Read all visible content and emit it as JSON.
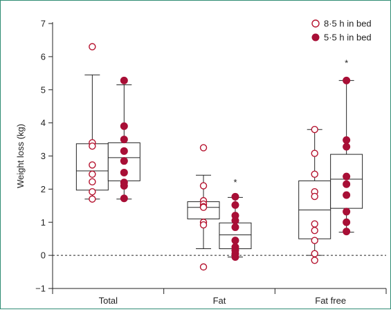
{
  "chart_data": {
    "type": "box",
    "title": "",
    "xlabel": "",
    "ylabel": "Weight loss (kg)",
    "ylim": [
      -1,
      7
    ],
    "yticks": [
      "−1",
      "0",
      "1",
      "2",
      "3",
      "4",
      "5",
      "6",
      "7"
    ],
    "reference_line": {
      "y": 0,
      "style": "dashed"
    },
    "grid": false,
    "legend_position": "top-right",
    "colors": {
      "open": "#b5122e",
      "filled": "#a80f36"
    },
    "categories": [
      "Total",
      "Fat",
      "Fat free"
    ],
    "series": [
      {
        "name": "8·5 h in bed",
        "marker": "open",
        "boxes": [
          {
            "whisker_low": 1.7,
            "q1": 1.97,
            "median": 2.55,
            "q3": 3.37,
            "whisker_high": 5.45,
            "points": [
              6.3,
              3.4,
              3.3,
              2.73,
              2.45,
              2.22,
              1.92,
              1.7
            ]
          },
          {
            "whisker_low": 0.2,
            "q1": 1.1,
            "median": 1.45,
            "q3": 1.62,
            "whisker_high": 2.42,
            "points": [
              3.25,
              2.1,
              1.65,
              1.55,
              1.47,
              1.45,
              1.0,
              0.92,
              -0.35
            ]
          },
          {
            "whisker_low": 0.0,
            "q1": 0.5,
            "median": 1.37,
            "q3": 2.25,
            "whisker_high": 3.8,
            "points": [
              3.8,
              3.08,
              2.45,
              1.92,
              1.78,
              0.95,
              0.75,
              0.45,
              0.05,
              -0.15
            ]
          }
        ]
      },
      {
        "name": "5·5 h in bed",
        "marker": "filled",
        "boxes": [
          {
            "whisker_low": 1.7,
            "q1": 2.25,
            "median": 2.95,
            "q3": 3.4,
            "whisker_high": 5.15,
            "points": [
              5.28,
              3.9,
              3.5,
              3.15,
              2.85,
              2.5,
              2.2,
              2.1,
              1.72
            ]
          },
          {
            "whisker_low": -0.05,
            "q1": 0.2,
            "median": 0.62,
            "q3": 0.98,
            "whisker_high": 1.75,
            "points": [
              1.77,
              1.52,
              1.2,
              1.05,
              0.85,
              0.45,
              0.25,
              0.15,
              0.05,
              -0.05
            ]
          },
          {
            "whisker_low": 0.7,
            "q1": 1.42,
            "median": 2.3,
            "q3": 3.05,
            "whisker_high": 5.28,
            "points": [
              5.28,
              3.48,
              3.28,
              2.38,
              2.15,
              1.82,
              1.32,
              1.0,
              0.72
            ]
          }
        ]
      }
    ],
    "annotations": [
      {
        "text": "*",
        "category": "Fat",
        "series": "5·5 h in bed",
        "y": 2.2
      },
      {
        "text": "*",
        "category": "Fat free",
        "series": "5·5 h in bed",
        "y": 5.8
      }
    ]
  }
}
